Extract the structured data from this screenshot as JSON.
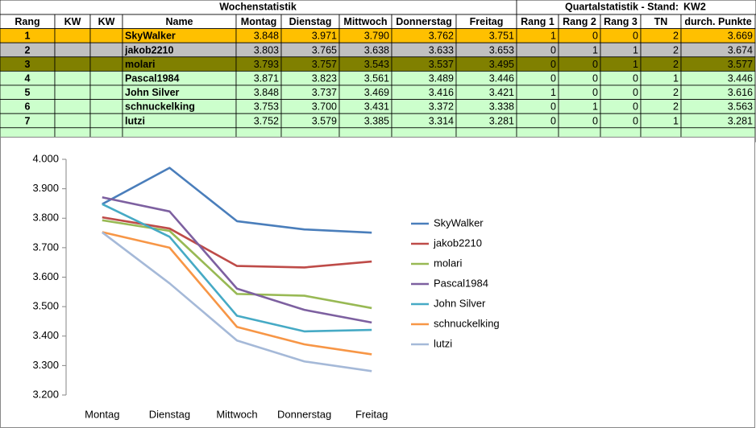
{
  "header": {
    "title": "Wochenstatistik",
    "quarter": "Quartalstatistik - Stand:",
    "week": "KW2"
  },
  "table": {
    "columns": [
      "Rang",
      "KW",
      "KW",
      "Name",
      "Montag",
      "Dienstag",
      "Mittwoch",
      "Donnerstag",
      "Freitag",
      "Rang 1",
      "Rang 2",
      "Rang 3",
      "TN",
      "durch. Punkte"
    ],
    "rows": [
      [
        "1",
        null,
        null,
        "SkyWalker",
        "3.848",
        "3.971",
        "3.790",
        "3.762",
        "3.751",
        "1",
        "0",
        "0",
        "2",
        "3.669"
      ],
      [
        "2",
        null,
        null,
        "jakob2210",
        "3.803",
        "3.765",
        "3.638",
        "3.633",
        "3.653",
        "0",
        "1",
        "1",
        "2",
        "3.674"
      ],
      [
        "3",
        null,
        null,
        "molari",
        "3.793",
        "3.757",
        "3.543",
        "3.537",
        "3.495",
        "0",
        "0",
        "1",
        "2",
        "3.577"
      ],
      [
        "4",
        null,
        null,
        "Pascal1984",
        "3.871",
        "3.823",
        "3.561",
        "3.489",
        "3.446",
        "0",
        "0",
        "0",
        "1",
        "3.446"
      ],
      [
        "5",
        null,
        null,
        "John Silver",
        "3.848",
        "3.737",
        "3.469",
        "3.416",
        "3.421",
        "1",
        "0",
        "0",
        "2",
        "3.616"
      ],
      [
        "6",
        null,
        null,
        "schnuckelking",
        "3.753",
        "3.700",
        "3.431",
        "3.372",
        "3.338",
        "0",
        "1",
        "0",
        "2",
        "3.563"
      ],
      [
        "7",
        null,
        null,
        "lutzi",
        "3.752",
        "3.579",
        "3.385",
        "3.314",
        "3.281",
        "0",
        "0",
        "0",
        "1",
        "3.281"
      ]
    ]
  },
  "chart_data": {
    "type": "line",
    "categories": [
      "Montag",
      "Dienstag",
      "Mittwoch",
      "Donnerstag",
      "Freitag"
    ],
    "ylim": [
      3.2,
      4.0
    ],
    "yticks": [
      {
        "value": 3.2,
        "label": "3.200"
      },
      {
        "value": 3.3,
        "label": "3.300"
      },
      {
        "value": 3.4,
        "label": "3.400"
      },
      {
        "value": 3.5,
        "label": "3.500"
      },
      {
        "value": 3.6,
        "label": "3.600"
      },
      {
        "value": 3.7,
        "label": "3.700"
      },
      {
        "value": 3.8,
        "label": "3.800"
      },
      {
        "value": 3.9,
        "label": "3.900"
      },
      {
        "value": 4.0,
        "label": "4.000"
      }
    ],
    "grid": false,
    "legend": "right",
    "series": [
      {
        "name": "SkyWalker",
        "color": "#4a7ebb",
        "values": [
          3.848,
          3.971,
          3.79,
          3.762,
          3.751
        ]
      },
      {
        "name": "jakob2210",
        "color": "#be4b48",
        "values": [
          3.803,
          3.765,
          3.638,
          3.633,
          3.653
        ]
      },
      {
        "name": "molari",
        "color": "#98b954",
        "values": [
          3.793,
          3.757,
          3.543,
          3.537,
          3.495
        ]
      },
      {
        "name": "Pascal1984",
        "color": "#7d60a0",
        "values": [
          3.871,
          3.823,
          3.561,
          3.489,
          3.446
        ]
      },
      {
        "name": "John Silver",
        "color": "#46aac5",
        "values": [
          3.848,
          3.737,
          3.469,
          3.416,
          3.421
        ]
      },
      {
        "name": "schnuckelking",
        "color": "#f79646",
        "values": [
          3.753,
          3.7,
          3.431,
          3.372,
          3.338
        ]
      },
      {
        "name": "lutzi",
        "color": "#a5b9d8",
        "values": [
          3.752,
          3.579,
          3.385,
          3.314,
          3.281
        ]
      }
    ]
  }
}
